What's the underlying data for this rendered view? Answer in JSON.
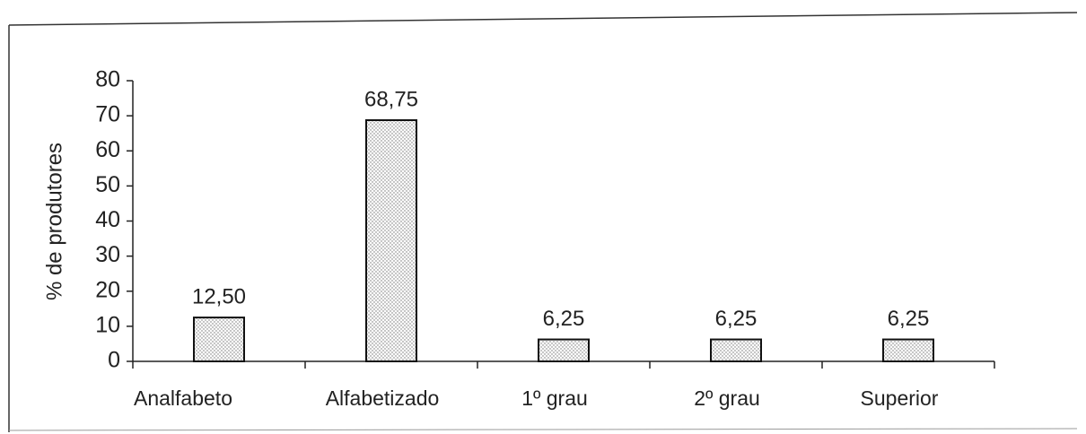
{
  "chart_data": {
    "type": "bar",
    "y_label": "% de produtores",
    "categories": [
      "Analfabeto",
      "Alfabetizado",
      "1º grau",
      "2º grau",
      "Superior"
    ],
    "values": [
      12.5,
      68.75,
      6.25,
      6.25,
      6.25
    ],
    "value_labels": [
      "12,50",
      "68,75",
      "6,25",
      "6,25",
      "6,25"
    ],
    "ylim": [
      0,
      80
    ],
    "yticks": [
      0,
      10,
      20,
      30,
      40,
      50,
      60,
      70,
      80
    ],
    "color": "#d8d8d8"
  }
}
